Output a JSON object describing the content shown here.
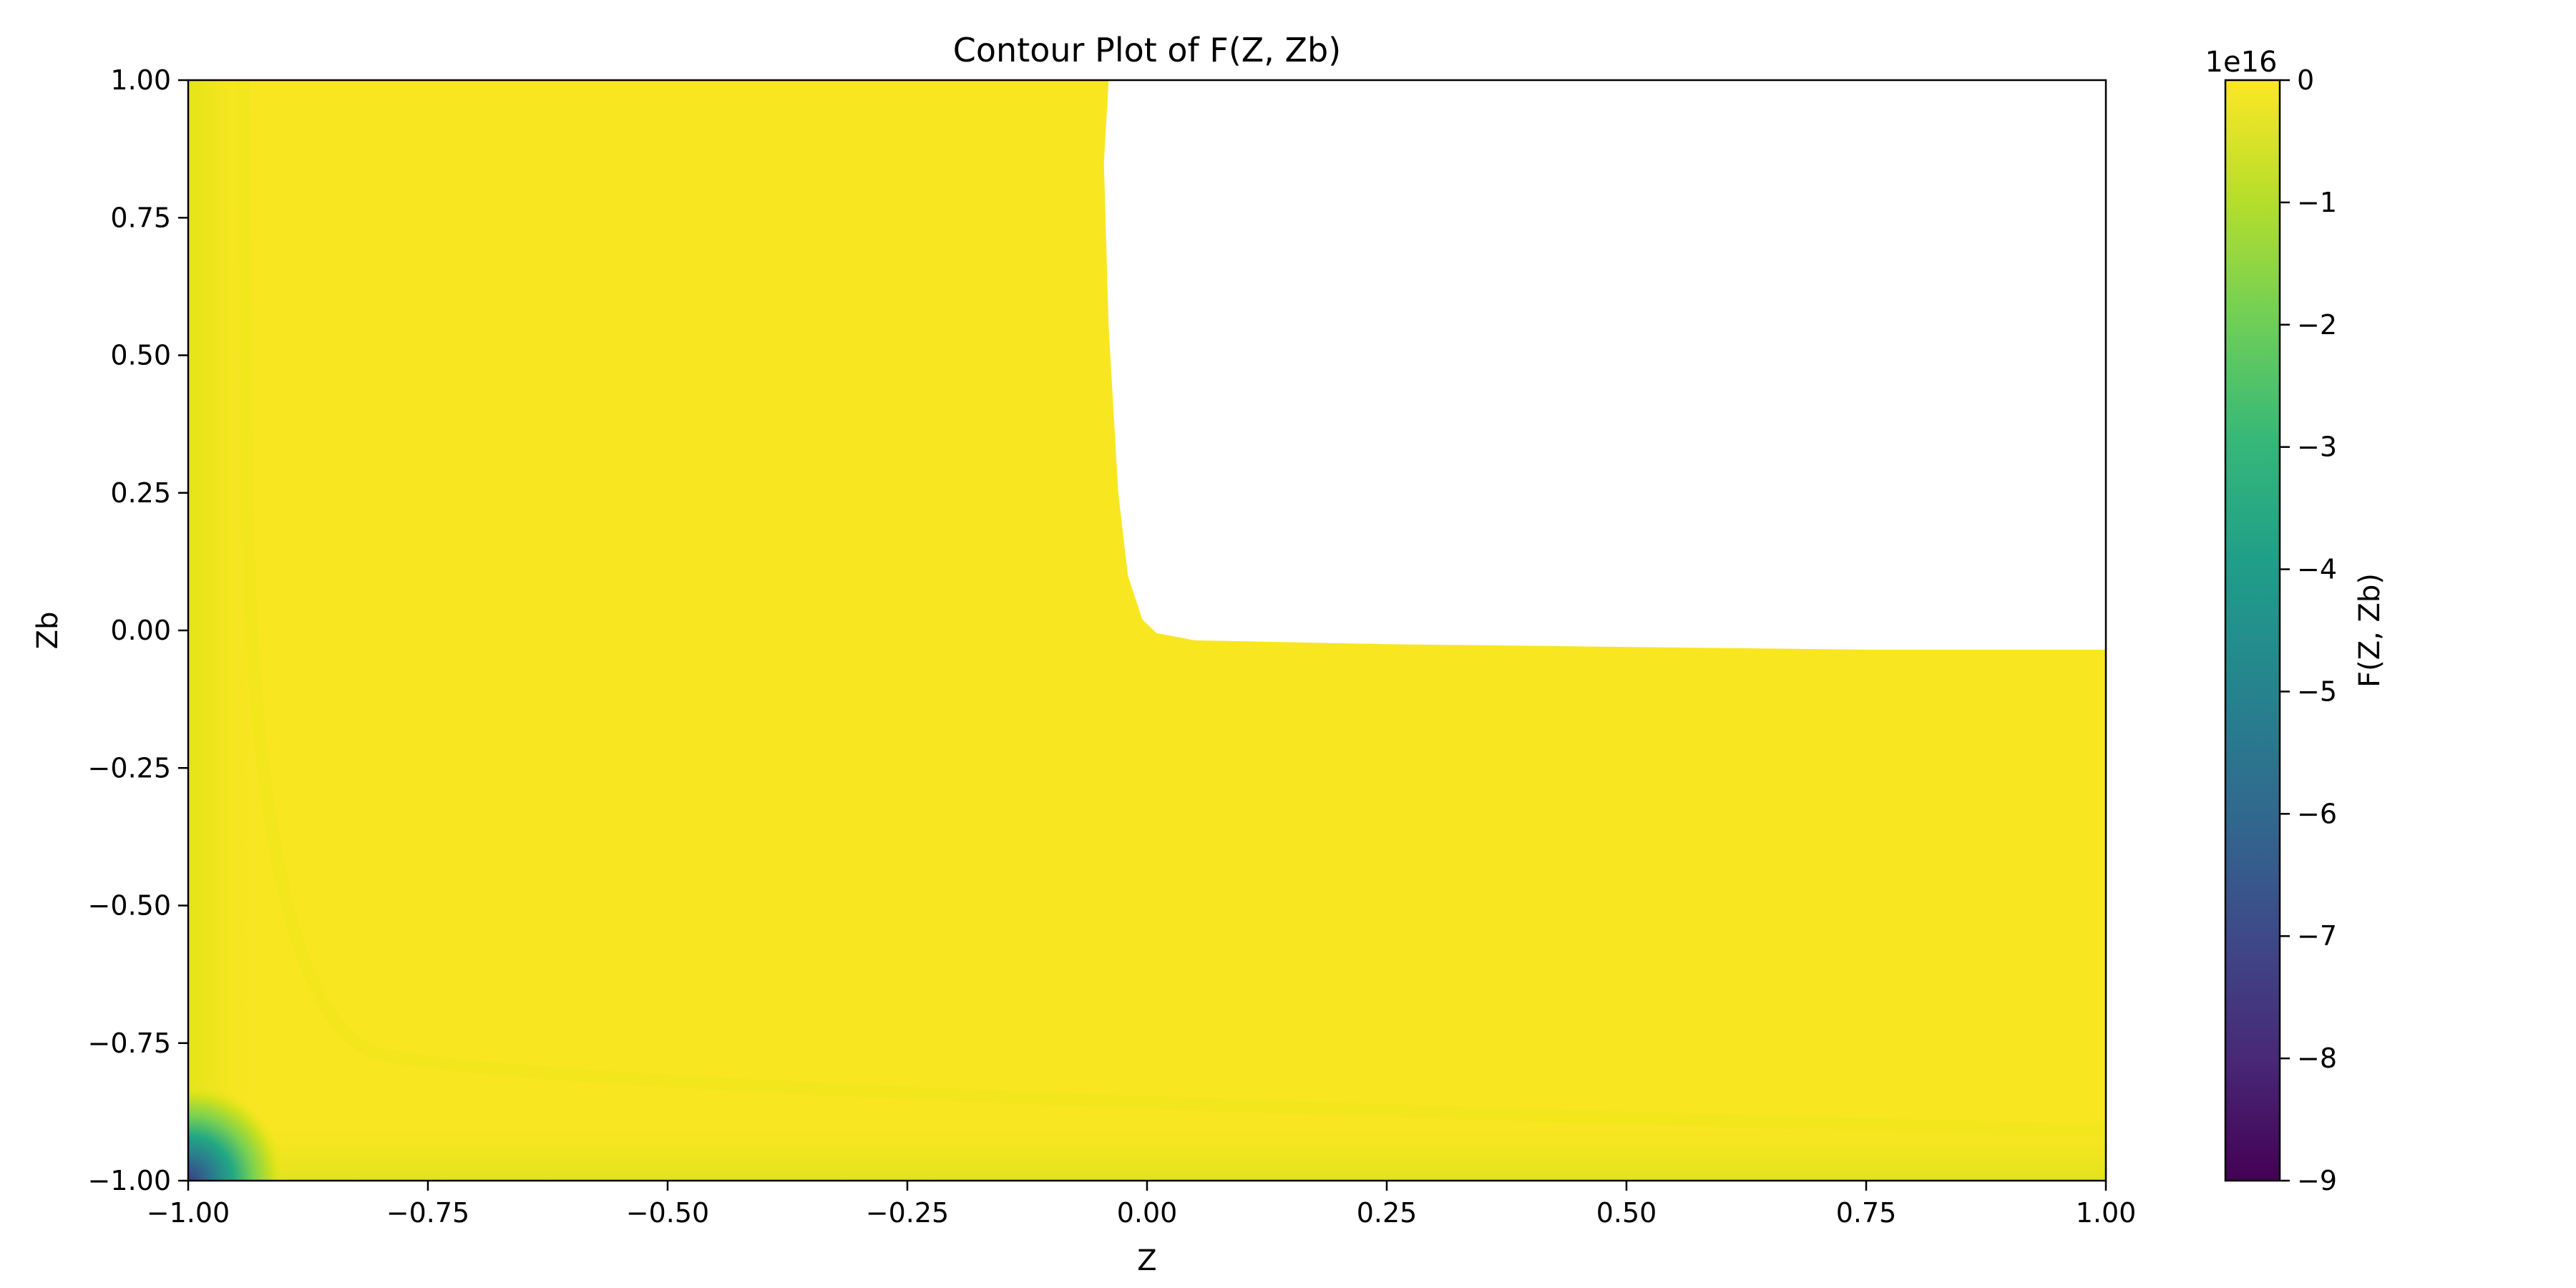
{
  "chart_data": {
    "type": "contour",
    "title": "Contour Plot of F(Z, Zb)",
    "xlabel": "Z",
    "ylabel": "Zb",
    "xlim": [
      -1.0,
      1.0
    ],
    "ylim": [
      -1.0,
      1.0
    ],
    "xticks": [
      "−1.00",
      "−0.75",
      "−0.50",
      "−0.25",
      "0.00",
      "0.25",
      "0.50",
      "0.75",
      "1.00"
    ],
    "yticks": [
      "−1.00",
      "−0.75",
      "−0.50",
      "−0.25",
      "0.00",
      "0.25",
      "0.50",
      "0.75",
      "1.00"
    ],
    "colormap": "viridis",
    "colorbar": {
      "label": "F(Z, Zb)",
      "offset_text": "1e16",
      "range": [
        -9,
        0
      ],
      "ticks": [
        "−9",
        "−8",
        "−7",
        "−6",
        "−5",
        "−4",
        "−3",
        "−2",
        "−1",
        "0"
      ]
    },
    "undefined_region": {
      "description": "blank (NaN) region",
      "z_range": [
        -0.04,
        1.0
      ],
      "zb_boundary": [
        {
          "z": -0.04,
          "zb": 1.0
        },
        {
          "z": -0.045,
          "zb": 0.85
        },
        {
          "z": -0.04,
          "zb": 0.55
        },
        {
          "z": -0.03,
          "zb": 0.25
        },
        {
          "z": -0.02,
          "zb": 0.1
        },
        {
          "z": -0.005,
          "zb": 0.02
        },
        {
          "z": 0.01,
          "zb": -0.005
        },
        {
          "z": 0.05,
          "zb": -0.018
        },
        {
          "z": 0.25,
          "zb": -0.025
        },
        {
          "z": 0.5,
          "zb": -0.03
        },
        {
          "z": 0.75,
          "zb": -0.035
        },
        {
          "z": 1.0,
          "zb": -0.035
        }
      ]
    },
    "dominant_value": 0,
    "minimum_corner": {
      "z": -1.0,
      "zb": -1.0,
      "value": -9
    }
  }
}
